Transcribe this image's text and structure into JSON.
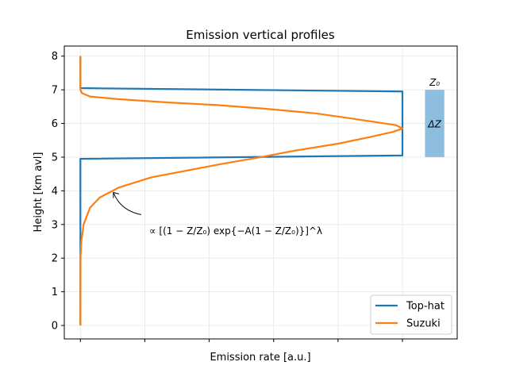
{
  "chart_data": {
    "type": "line",
    "title": "Emission vertical profiles",
    "xlabel": "Emission rate [a.u.]",
    "ylabel": "Height [km avl]",
    "xlim": [
      -0.05,
      1.17
    ],
    "ylim": [
      -0.4,
      8.3
    ],
    "xticks": [
      0,
      0.2,
      0.4,
      0.6,
      0.8,
      1.0
    ],
    "yticks": [
      0,
      1,
      2,
      3,
      4,
      5,
      6,
      7,
      8
    ],
    "ytick_labels": [
      "0",
      "1",
      "2",
      "3",
      "4",
      "5",
      "6",
      "7",
      "8"
    ],
    "grid": true,
    "legend_position": "lower right",
    "series": [
      {
        "name": "Top-hat",
        "color": "#1f77b4",
        "points": [
          [
            0,
            0
          ],
          [
            0,
            4.95
          ],
          [
            1.0,
            5.05
          ],
          [
            1.0,
            6.95
          ],
          [
            0,
            7.05
          ],
          [
            0,
            8.0
          ]
        ]
      },
      {
        "name": "Suzuki",
        "color": "#ff7f0e",
        "points": [
          [
            0,
            0
          ],
          [
            0.0003,
            1.0
          ],
          [
            0.0005,
            2.0
          ],
          [
            0.003,
            2.5
          ],
          [
            0.01,
            3.0
          ],
          [
            0.03,
            3.5
          ],
          [
            0.06,
            3.8
          ],
          [
            0.12,
            4.1
          ],
          [
            0.22,
            4.4
          ],
          [
            0.33,
            4.6
          ],
          [
            0.44,
            4.8
          ],
          [
            0.56,
            5.0
          ],
          [
            0.67,
            5.2
          ],
          [
            0.8,
            5.4
          ],
          [
            0.9,
            5.6
          ],
          [
            0.97,
            5.75
          ],
          [
            1.0,
            5.85
          ],
          [
            0.98,
            5.95
          ],
          [
            0.91,
            6.05
          ],
          [
            0.84,
            6.15
          ],
          [
            0.73,
            6.3
          ],
          [
            0.56,
            6.45
          ],
          [
            0.42,
            6.55
          ],
          [
            0.28,
            6.62
          ],
          [
            0.12,
            6.72
          ],
          [
            0.03,
            6.8
          ],
          [
            0.005,
            6.9
          ],
          [
            0.0,
            7.0
          ],
          [
            0.0,
            8.0
          ]
        ]
      }
    ],
    "annotations": {
      "top_label": "Z₀",
      "depth_label": "ΔZ",
      "layer_top": 7,
      "layer_bottom": 5,
      "layer_color": "#88bbdd",
      "arrow_target": [
        0.1,
        4.0
      ],
      "formula": "∝ [(1 − Z/Z₀) exp{−A(1 − Z/Z₀)}]^λ"
    }
  }
}
